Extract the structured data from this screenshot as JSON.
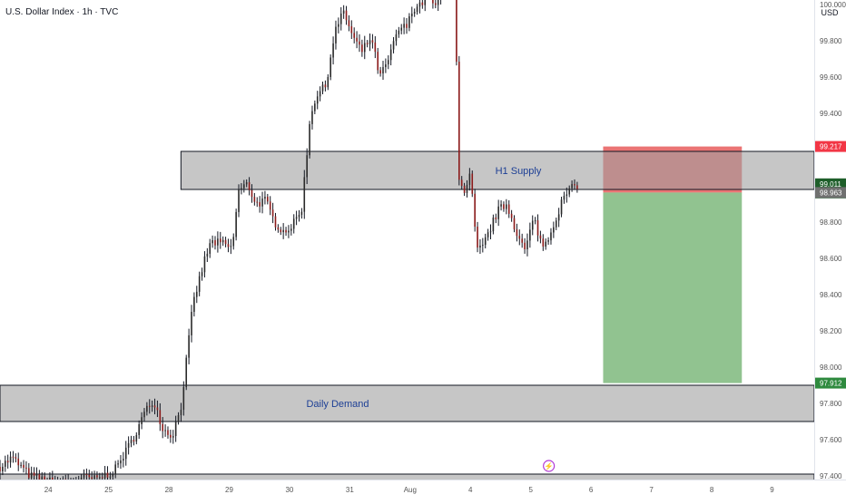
{
  "header": {
    "symbol_title": "U.S. Dollar Index · 1h · TVC",
    "currency": "USD"
  },
  "chart_data": {
    "type": "candlestick",
    "symbol": "U.S. Dollar Index",
    "interval": "1h",
    "source": "TVC",
    "currency": "USD",
    "y_axis": {
      "range": [
        97.4,
        100.2
      ],
      "tick_labels": [
        "100.000",
        "99.800",
        "99.600",
        "99.400",
        "98.800",
        "98.600",
        "98.400",
        "98.200",
        "98.000",
        "97.800",
        "97.600",
        "97.400"
      ]
    },
    "x_axis": {
      "tick_labels": [
        "24",
        "25",
        "28",
        "29",
        "30",
        "31",
        "Aug",
        "4",
        "5",
        "6",
        "7",
        "8",
        "9"
      ],
      "tick_positions": [
        0.5,
        1.5,
        2.5,
        3.5,
        4.5,
        5.5,
        6.5,
        7.5,
        8.5,
        9.5,
        10.5,
        11.5,
        12.5
      ],
      "range": [
        -0.3,
        13.2
      ]
    },
    "zones": [
      {
        "name": "Top supply zone",
        "label": "",
        "x_start": 2.7,
        "y_low": 100.08,
        "y_high": 100.25
      },
      {
        "name": "H1 Supply",
        "label": "H1 Supply",
        "x_start": 2.7,
        "y_low": 98.98,
        "y_high": 99.19
      },
      {
        "name": "Daily Demand",
        "label": "Daily Demand",
        "x_start": -0.3,
        "y_low": 97.7,
        "y_high": 97.9
      },
      {
        "name": "Bottom zone",
        "label": "",
        "x_start": -0.3,
        "y_low": 97.35,
        "y_high": 97.41
      }
    ],
    "position": {
      "type": "short",
      "x_start": 9.7,
      "x_end": 12.0,
      "stop": 99.217,
      "entry": 98.963,
      "target": 97.912
    },
    "price_labels": [
      {
        "label": "stop",
        "text": "99.217",
        "value": 99.217,
        "color": "#f23645"
      },
      {
        "label": "last",
        "text": "99.011",
        "countdown": "57:59",
        "value": 99.011,
        "color": "#1e5e2a"
      },
      {
        "label": "entry",
        "text": "98.963",
        "value": 98.963,
        "color": "#707070"
      },
      {
        "label": "target",
        "text": "97.912",
        "value": 97.912,
        "color": "#2e8a3e"
      }
    ],
    "price_path": [
      [
        -0.3,
        97.45
      ],
      [
        -0.1,
        97.5
      ],
      [
        0.2,
        97.4
      ],
      [
        0.5,
        97.37
      ],
      [
        0.8,
        97.36
      ],
      [
        1.1,
        97.39
      ],
      [
        1.3,
        97.38
      ],
      [
        1.6,
        97.43
      ],
      [
        1.9,
        97.6
      ],
      [
        2.1,
        97.75
      ],
      [
        2.25,
        97.82
      ],
      [
        2.4,
        97.66
      ],
      [
        2.55,
        97.62
      ],
      [
        2.7,
        97.78
      ],
      [
        2.9,
        98.35
      ],
      [
        3.1,
        98.6
      ],
      [
        3.2,
        98.69
      ],
      [
        3.4,
        98.68
      ],
      [
        3.55,
        98.65
      ],
      [
        3.65,
        98.97
      ],
      [
        3.8,
        99.01
      ],
      [
        3.95,
        98.9
      ],
      [
        4.1,
        98.92
      ],
      [
        4.25,
        98.8
      ],
      [
        4.4,
        98.75
      ],
      [
        4.55,
        98.78
      ],
      [
        4.7,
        98.87
      ],
      [
        4.85,
        99.4
      ],
      [
        4.95,
        99.5
      ],
      [
        5.1,
        99.55
      ],
      [
        5.25,
        99.85
      ],
      [
        5.4,
        99.96
      ],
      [
        5.55,
        99.82
      ],
      [
        5.7,
        99.74
      ],
      [
        5.85,
        99.82
      ],
      [
        6.0,
        99.6
      ],
      [
        6.15,
        99.7
      ],
      [
        6.3,
        99.86
      ],
      [
        6.45,
        99.88
      ],
      [
        6.55,
        99.98
      ],
      [
        6.7,
        100.01
      ],
      [
        6.8,
        100.1
      ],
      [
        6.9,
        99.96
      ],
      [
        7.0,
        100.08
      ],
      [
        7.1,
        100.05
      ],
      [
        7.15,
        100.21
      ],
      [
        7.25,
        100.1
      ],
      [
        7.3,
        99.04
      ],
      [
        7.4,
        98.94
      ],
      [
        7.5,
        99.07
      ],
      [
        7.6,
        98.64
      ],
      [
        7.7,
        98.66
      ],
      [
        7.8,
        98.74
      ],
      [
        7.95,
        98.86
      ],
      [
        8.1,
        98.9
      ],
      [
        8.25,
        98.76
      ],
      [
        8.4,
        98.64
      ],
      [
        8.55,
        98.82
      ],
      [
        8.7,
        98.66
      ],
      [
        8.85,
        98.76
      ],
      [
        9.0,
        98.9
      ],
      [
        9.1,
        98.96
      ],
      [
        9.2,
        98.99
      ],
      [
        9.3,
        99.011
      ]
    ]
  }
}
